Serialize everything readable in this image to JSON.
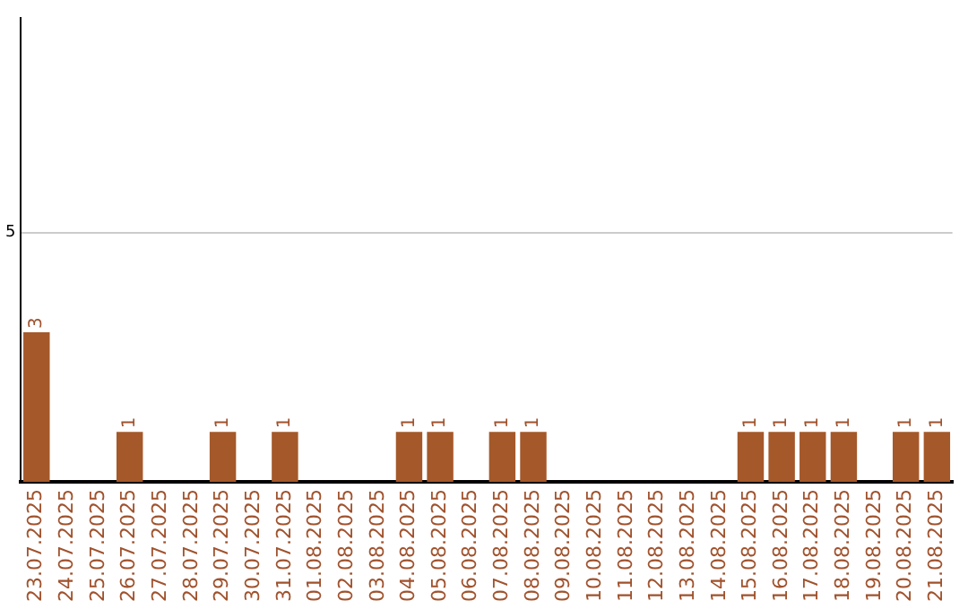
{
  "chart_data": {
    "type": "bar",
    "categories": [
      "23.07.2025",
      "24.07.2025",
      "25.07.2025",
      "26.07.2025",
      "27.07.2025",
      "28.07.2025",
      "29.07.2025",
      "30.07.2025",
      "31.07.2025",
      "01.08.2025",
      "02.08.2025",
      "03.08.2025",
      "04.08.2025",
      "05.08.2025",
      "06.08.2025",
      "07.08.2025",
      "08.08.2025",
      "09.08.2025",
      "10.08.2025",
      "11.08.2025",
      "12.08.2025",
      "13.08.2025",
      "14.08.2025",
      "15.08.2025",
      "16.08.2025",
      "17.08.2025",
      "18.08.2025",
      "19.08.2025",
      "20.08.2025",
      "21.08.2025"
    ],
    "values": [
      3,
      0,
      0,
      1,
      0,
      0,
      1,
      0,
      1,
      0,
      0,
      0,
      1,
      1,
      0,
      1,
      1,
      0,
      0,
      0,
      0,
      0,
      0,
      1,
      1,
      1,
      1,
      0,
      1,
      1
    ],
    "value_labels": [
      "3",
      null,
      null,
      "1",
      null,
      null,
      "1",
      null,
      "1",
      null,
      null,
      null,
      "1",
      "1",
      null,
      "1",
      "1",
      null,
      null,
      null,
      null,
      null,
      null,
      "1",
      "1",
      "1",
      "1",
      null,
      "1",
      "1"
    ],
    "color": "#a5582a",
    "ylim": [
      0,
      9.3
    ],
    "yticks": [
      5
    ],
    "grid": "y",
    "legend": false
  }
}
